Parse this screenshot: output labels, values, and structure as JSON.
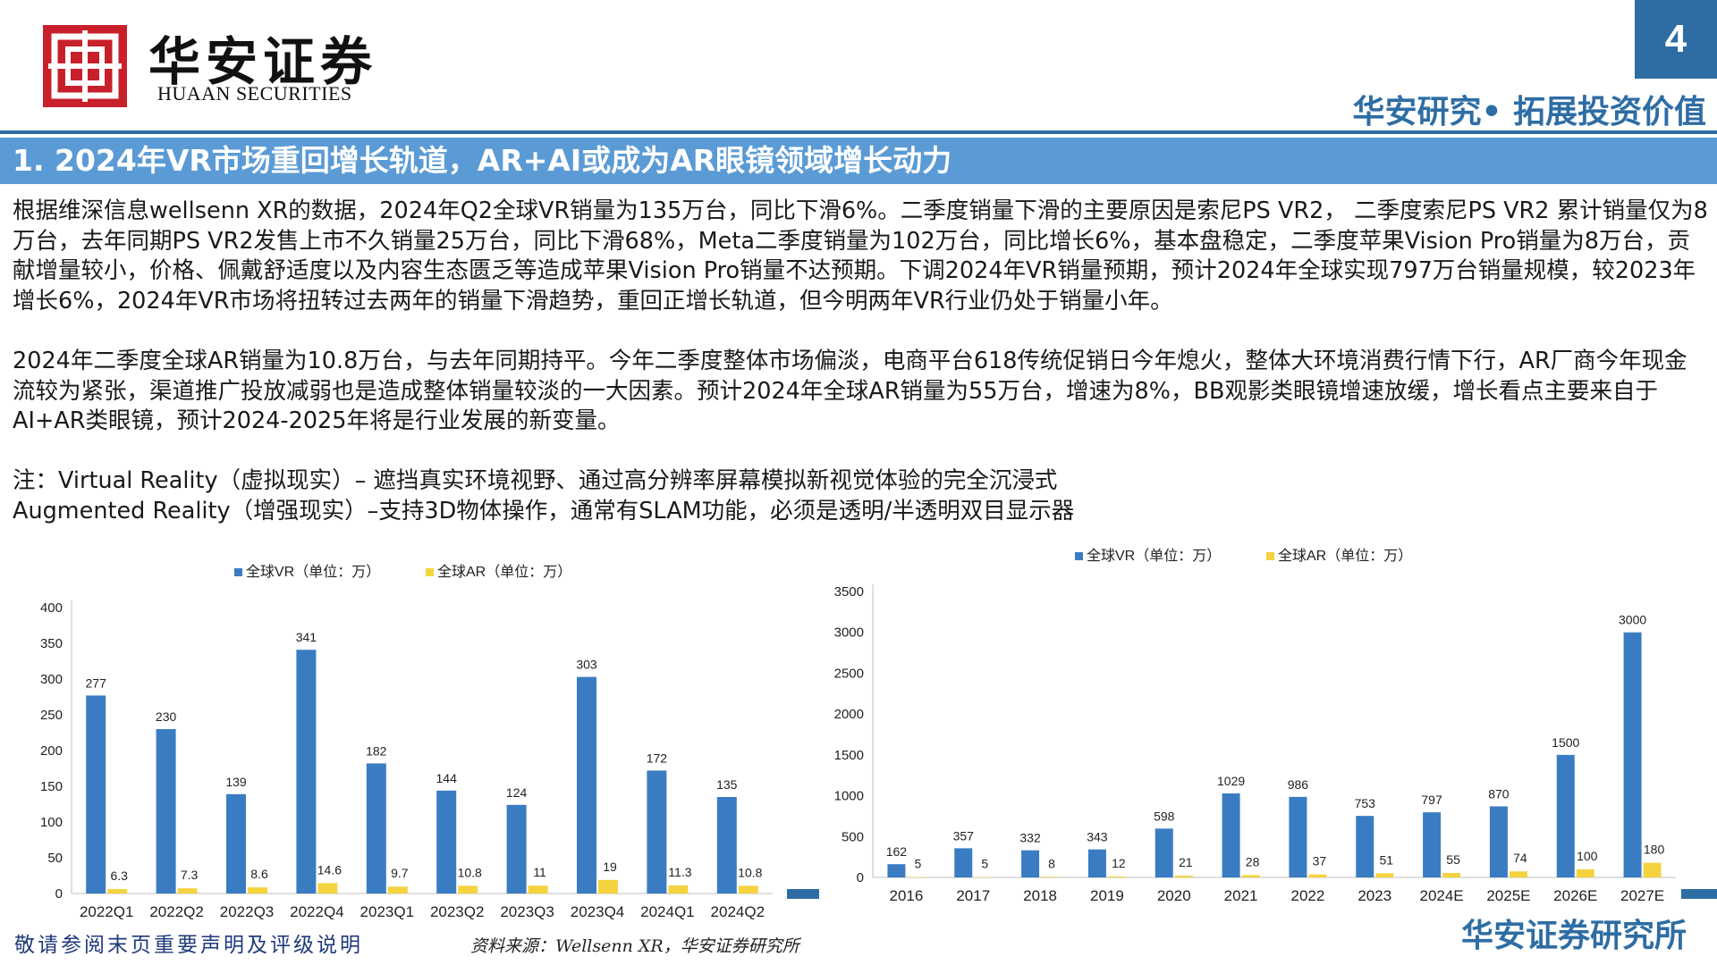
{
  "header": {
    "logo_cn": "华安证券",
    "logo_en": "HUAAN SECURITIES",
    "page_number": "4",
    "slogan": "华安研究• 拓展投资价值"
  },
  "section_title": "1. 2024年VR市场重回增长轨道，AR+AI或成为AR眼镜领域增长动力",
  "paragraphs": [
    "根据维深信息wellsenn XR的数据，2024年Q2全球VR销量为135万台，同比下滑6%。二季度销量下滑的主要原因是索尼PS VR2， 二季度索尼PS VR2 累计销量仅为8万台，去年同期PS VR2发售上市不久销量25万台，同比下滑68%，Meta二季度销量为102万台，同比增长6%，基本盘稳定，二季度苹果Vision Pro销量为8万台，贡献增量较小，价格、佩戴舒适度以及内容生态匮乏等造成苹果Vision Pro销量不达预期。下调2024年VR销量预期，预计2024年全球实现797万台销量规模，较2023年增长6%，2024年VR市场将扭转过去两年的销量下滑趋势，重回正增长轨道，但今明两年VR行业仍处于销量小年。",
    "2024年二季度全球AR销量为10.8万台，与去年同期持平。今年二季度整体市场偏淡，电商平台618传统促销日今年熄火，整体大环境消费行情下行，AR厂商今年现金流较为紧张，渠道推广投放减弱也是造成整体销量较淡的一大因素。预计2024年全球AR销量为55万台，增速为8%，BB观影类眼镜增速放缓，增长看点主要来自于AI+AR类眼镜，预计2024-2025年将是行业发展的新变量。"
  ],
  "notes": {
    "line1": "注：Virtual Reality（虚拟现实）– 遮挡真实环境视野、通过高分辨率屏幕模拟新视觉体验的完全沉浸式",
    "line2": "Augmented Reality（增强现实）–支持3D物体操作，通常有SLAM功能，必须是透明/半透明双目显示器"
  },
  "colors": {
    "vr": "#3a7cc2",
    "ar": "#f5d33f",
    "brand_blue": "#2e6da4",
    "logo_red": "#c8202a"
  },
  "chart_data": [
    {
      "type": "bar",
      "categories": [
        "2022Q1",
        "2022Q2",
        "2022Q3",
        "2022Q4",
        "2023Q1",
        "2023Q2",
        "2023Q3",
        "2023Q4",
        "2024Q1",
        "2024Q2"
      ],
      "series": [
        {
          "name": "全球VR（单位：万）",
          "values": [
            277,
            230,
            139,
            341,
            182,
            144,
            124,
            303,
            172,
            135
          ],
          "labels": [
            "277",
            "230",
            "139",
            "341",
            "182",
            "144",
            "124",
            "303",
            "172",
            "135"
          ]
        },
        {
          "name": "全球AR（单位：万）",
          "values": [
            6.3,
            7.3,
            8.6,
            14.6,
            9.7,
            10.8,
            11,
            19,
            11.3,
            10.8
          ],
          "labels": [
            "6.3",
            "7.3",
            "8.6",
            "14.6",
            "9.7",
            "10.8",
            "11",
            "19",
            "11.3",
            "10.8"
          ]
        }
      ],
      "ylim": [
        0,
        400
      ],
      "yticks": [
        "0",
        "50",
        "100",
        "150",
        "200",
        "250",
        "300",
        "350",
        "400"
      ],
      "legend": "top",
      "grid": false
    },
    {
      "type": "bar",
      "categories": [
        "2016",
        "2017",
        "2018",
        "2019",
        "2020",
        "2021",
        "2022",
        "2023",
        "2024E",
        "2025E",
        "2026E",
        "2027E"
      ],
      "series": [
        {
          "name": "全球VR（单位：万）",
          "values": [
            162,
            357,
            332,
            343,
            598,
            1029,
            986,
            753,
            797,
            870,
            1500,
            3000
          ],
          "labels": [
            "162",
            "357",
            "332",
            "343",
            "598",
            "1029",
            "986",
            "753",
            "797",
            "870",
            "1500",
            "3000"
          ]
        },
        {
          "name": "全球AR（单位：万）",
          "values": [
            5,
            5,
            8,
            12,
            21,
            28,
            37,
            51,
            55,
            74,
            100,
            180
          ],
          "labels": [
            "5",
            "5",
            "8",
            "12",
            "21",
            "28",
            "37",
            "51",
            "55",
            "74",
            "100",
            "180"
          ]
        }
      ],
      "ylim": [
        0,
        3500
      ],
      "yticks": [
        "0",
        "500",
        "1000",
        "1500",
        "2000",
        "2500",
        "3000",
        "3500"
      ],
      "legend": "top",
      "grid": false
    }
  ],
  "footer": {
    "disclaimer": "敬请参阅末页重要声明及评级说明",
    "source": "资料来源：Wellsenn XR，华安证券研究所",
    "org": "华安证券研究所"
  }
}
